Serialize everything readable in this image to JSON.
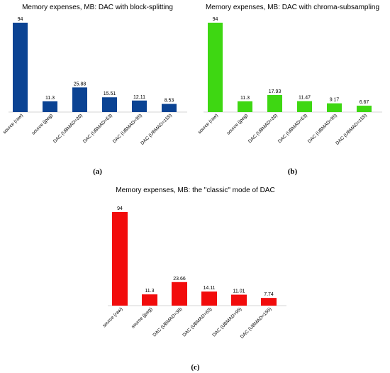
{
  "chart_data": [
    {
      "type": "bar",
      "title": "Memory expenses, MB: DAC with block-splitting",
      "panel_label": "(a)",
      "color": "#0b4393",
      "categories": [
        "source (raw)",
        "source (jpeg)",
        "DAC (UBMAD=36)",
        "DAC (UBMAD=63)",
        "DAC (UBMAD=95)",
        "DAC (UBMAD=155)"
      ],
      "values": [
        94,
        11.3,
        25.88,
        15.51,
        12.11,
        8.53
      ],
      "value_labels": [
        "94",
        "11.3",
        "25.88",
        "15.51",
        "12.11",
        "8.53"
      ],
      "ylim": [
        0,
        94
      ],
      "grid": false,
      "xlabel": "",
      "ylabel": ""
    },
    {
      "type": "bar",
      "title": "Memory expenses, MB: DAC with chroma-subsampling",
      "panel_label": "(b)",
      "color": "#3ed712",
      "categories": [
        "source (raw)",
        "source (jpeg)",
        "DAC (UBMAD=36)",
        "DAC (UBMAD=63)",
        "DAC (UBMAD=95)",
        "DAC (UBMAD=155)"
      ],
      "values": [
        94,
        11.3,
        17.93,
        11.47,
        9.17,
        6.67
      ],
      "value_labels": [
        "94",
        "11.3",
        "17.93",
        "11.47",
        "9.17",
        "6.67"
      ],
      "ylim": [
        0,
        94
      ],
      "grid": false,
      "xlabel": "",
      "ylabel": ""
    },
    {
      "type": "bar",
      "title": "Memory expenses, MB: the \"classic\" mode of DAC",
      "panel_label": "(c)",
      "color": "#f20c0c",
      "categories": [
        "source (raw)",
        "source (jpeg)",
        "DAC (UBMAD=36)",
        "DAC (UBMAD=63)",
        "DAC (UBMAD=95)",
        "DAC (UBMAD=155)"
      ],
      "values": [
        94,
        11.3,
        23.66,
        14.11,
        11.01,
        7.74
      ],
      "value_labels": [
        "94",
        "11.3",
        "23.66",
        "14.11",
        "11.01",
        "7.74"
      ],
      "ylim": [
        0,
        94
      ],
      "grid": false,
      "xlabel": "",
      "ylabel": ""
    }
  ]
}
